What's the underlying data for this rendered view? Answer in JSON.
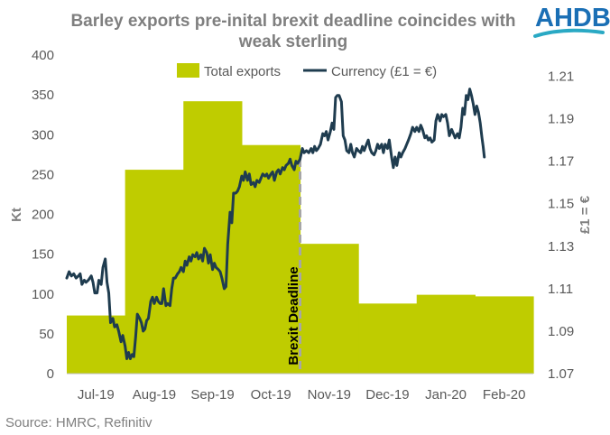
{
  "chart_data": {
    "type": "bar+line",
    "title_lines": [
      "Barley exports pre-inital brexit deadline coincides with",
      "weak sterling"
    ],
    "ylabel_left": "Kt",
    "ylabel_right": "£1 = €",
    "source": "Source: HMRC, Refinitiv",
    "logo": "AHDB",
    "annotation": "Brexit Deadline",
    "ylim_left": [
      0,
      400
    ],
    "yticks_left": [
      0,
      50,
      100,
      150,
      200,
      250,
      300,
      350,
      400
    ],
    "ylim_right": [
      1.07,
      1.22
    ],
    "yticks_right": [
      "1.07",
      "1.09",
      "1.11",
      "1.13",
      "1.15",
      "1.17",
      "1.19",
      "1.21"
    ],
    "month_labels": [
      "Jul-19",
      "Aug-19",
      "Sep-19",
      "Oct-19",
      "Nov-19",
      "Dec-19",
      "Jan-20",
      "Feb-20"
    ],
    "exports": {
      "name": "Total exports",
      "color": "#bfcc00",
      "values": [
        73,
        256,
        342,
        287,
        163,
        88,
        99,
        97
      ]
    },
    "currency": {
      "name": "Currency (£1 = €)",
      "color": "#1f3c4f",
      "points": [
        [
          0.0,
          1.115
        ],
        [
          0.04,
          1.118
        ],
        [
          0.08,
          1.116
        ],
        [
          0.12,
          1.117
        ],
        [
          0.16,
          1.115
        ],
        [
          0.2,
          1.116
        ],
        [
          0.23,
          1.117
        ],
        [
          0.26,
          1.112
        ],
        [
          0.3,
          1.114
        ],
        [
          0.33,
          1.113
        ],
        [
          0.37,
          1.114
        ],
        [
          0.42,
          1.116
        ],
        [
          0.45,
          1.113
        ],
        [
          0.48,
          1.108
        ],
        [
          0.52,
          1.108
        ],
        [
          0.55,
          1.114
        ],
        [
          0.59,
          1.112
        ],
        [
          0.62,
          1.12
        ],
        [
          0.66,
          1.124
        ],
        [
          0.69,
          1.113
        ],
        [
          0.72,
          1.108
        ],
        [
          0.75,
          1.094
        ],
        [
          0.79,
          1.096
        ],
        [
          0.82,
          1.092
        ],
        [
          0.86,
          1.093
        ],
        [
          0.89,
          1.09
        ],
        [
          0.93,
          1.085
        ],
        [
          0.96,
          1.088
        ],
        [
          1.0,
          1.083
        ],
        [
          1.03,
          1.077
        ],
        [
          1.06,
          1.08
        ],
        [
          1.09,
          1.077
        ],
        [
          1.12,
          1.079
        ],
        [
          1.15,
          1.078
        ],
        [
          1.18,
          1.087
        ],
        [
          1.21,
          1.098
        ],
        [
          1.25,
          1.096
        ],
        [
          1.28,
          1.094
        ],
        [
          1.31,
          1.09
        ],
        [
          1.34,
          1.091
        ],
        [
          1.37,
          1.095
        ],
        [
          1.4,
          1.096
        ],
        [
          1.44,
          1.104
        ],
        [
          1.47,
          1.106
        ],
        [
          1.5,
          1.103
        ],
        [
          1.54,
          1.106
        ],
        [
          1.57,
          1.104
        ],
        [
          1.6,
          1.103
        ],
        [
          1.63,
          1.103
        ],
        [
          1.66,
          1.11
        ],
        [
          1.7,
          1.102
        ],
        [
          1.73,
          1.103
        ],
        [
          1.77,
          1.102
        ],
        [
          1.8,
          1.11
        ],
        [
          1.83,
          1.115
        ],
        [
          1.86,
          1.115
        ],
        [
          1.9,
          1.117
        ],
        [
          1.93,
          1.118
        ],
        [
          1.96,
          1.12
        ],
        [
          2.0,
          1.118
        ],
        [
          2.03,
          1.123
        ],
        [
          2.06,
          1.121
        ],
        [
          2.1,
          1.125
        ],
        [
          2.13,
          1.123
        ],
        [
          2.16,
          1.126
        ],
        [
          2.2,
          1.125
        ],
        [
          2.23,
          1.127
        ],
        [
          2.26,
          1.124
        ],
        [
          2.3,
          1.126
        ],
        [
          2.33,
          1.123
        ],
        [
          2.36,
          1.129
        ],
        [
          2.4,
          1.127
        ],
        [
          2.43,
          1.122
        ],
        [
          2.46,
          1.126
        ],
        [
          2.5,
          1.119
        ],
        [
          2.53,
          1.122
        ],
        [
          2.56,
          1.12
        ],
        [
          2.6,
          1.119
        ],
        [
          2.63,
          1.118
        ],
        [
          2.66,
          1.115
        ],
        [
          2.7,
          1.11
        ],
        [
          2.73,
          1.111
        ],
        [
          2.76,
          1.131
        ],
        [
          2.8,
          1.146
        ],
        [
          2.83,
          1.141
        ],
        [
          2.86,
          1.155
        ],
        [
          2.9,
          1.155
        ],
        [
          2.93,
          1.156
        ],
        [
          2.96,
          1.158
        ],
        [
          3.0,
          1.163
        ],
        [
          3.03,
          1.161
        ],
        [
          3.06,
          1.165
        ],
        [
          3.1,
          1.161
        ],
        [
          3.13,
          1.164
        ],
        [
          3.16,
          1.159
        ],
        [
          3.2,
          1.16
        ],
        [
          3.23,
          1.158
        ],
        [
          3.26,
          1.161
        ],
        [
          3.3,
          1.16
        ],
        [
          3.33,
          1.162
        ],
        [
          3.36,
          1.164
        ],
        [
          3.4,
          1.163
        ],
        [
          3.43,
          1.164
        ],
        [
          3.46,
          1.162
        ],
        [
          3.5,
          1.164
        ],
        [
          3.53,
          1.165
        ],
        [
          3.56,
          1.161
        ],
        [
          3.6,
          1.165
        ],
        [
          3.63,
          1.166
        ],
        [
          3.66,
          1.164
        ],
        [
          3.7,
          1.167
        ],
        [
          3.73,
          1.166
        ],
        [
          3.76,
          1.168
        ],
        [
          3.8,
          1.169
        ],
        [
          3.83,
          1.171
        ],
        [
          3.86,
          1.168
        ],
        [
          3.9,
          1.166
        ],
        [
          3.93,
          1.17
        ],
        [
          3.96,
          1.169
        ],
        [
          4.0,
          1.171
        ],
        [
          4.04,
          1.176
        ],
        [
          4.07,
          1.174
        ],
        [
          4.11,
          1.175
        ],
        [
          4.15,
          1.174
        ],
        [
          4.19,
          1.176
        ],
        [
          4.22,
          1.174
        ],
        [
          4.25,
          1.177
        ],
        [
          4.28,
          1.175
        ],
        [
          4.31,
          1.176
        ],
        [
          4.35,
          1.178
        ],
        [
          4.39,
          1.183
        ],
        [
          4.42,
          1.182
        ],
        [
          4.45,
          1.184
        ],
        [
          4.48,
          1.18
        ],
        [
          4.52,
          1.184
        ],
        [
          4.55,
          1.188
        ],
        [
          4.58,
          1.185
        ],
        [
          4.61,
          1.2
        ],
        [
          4.64,
          1.201
        ],
        [
          4.67,
          1.201
        ],
        [
          4.71,
          1.198
        ],
        [
          4.74,
          1.182
        ],
        [
          4.77,
          1.18
        ],
        [
          4.8,
          1.175
        ],
        [
          4.84,
          1.174
        ],
        [
          4.87,
          1.178
        ],
        [
          4.9,
          1.174
        ],
        [
          4.93,
          1.172
        ],
        [
          4.97,
          1.176
        ],
        [
          5.0,
          1.175
        ],
        [
          5.04,
          1.174
        ],
        [
          5.07,
          1.177
        ],
        [
          5.1,
          1.175
        ],
        [
          5.14,
          1.178
        ],
        [
          5.17,
          1.18
        ],
        [
          5.2,
          1.176
        ],
        [
          5.23,
          1.174
        ],
        [
          5.27,
          1.173
        ],
        [
          5.3,
          1.175
        ],
        [
          5.33,
          1.178
        ],
        [
          5.36,
          1.176
        ],
        [
          5.4,
          1.178
        ],
        [
          5.43,
          1.174
        ],
        [
          5.46,
          1.178
        ],
        [
          5.5,
          1.176
        ],
        [
          5.53,
          1.18
        ],
        [
          5.57,
          1.172
        ],
        [
          5.6,
          1.167
        ],
        [
          5.63,
          1.172
        ],
        [
          5.66,
          1.168
        ],
        [
          5.7,
          1.174
        ],
        [
          5.73,
          1.172
        ],
        [
          5.76,
          1.174
        ],
        [
          5.8,
          1.176
        ],
        [
          5.83,
          1.178
        ],
        [
          5.86,
          1.18
        ],
        [
          5.9,
          1.183
        ],
        [
          5.93,
          1.186
        ],
        [
          5.97,
          1.184
        ],
        [
          6.0,
          1.186
        ],
        [
          6.04,
          1.184
        ],
        [
          6.07,
          1.187
        ],
        [
          6.1,
          1.185
        ],
        [
          6.14,
          1.181
        ],
        [
          6.17,
          1.182
        ],
        [
          6.2,
          1.18
        ],
        [
          6.23,
          1.181
        ],
        [
          6.26,
          1.179
        ],
        [
          6.3,
          1.18
        ],
        [
          6.33,
          1.189
        ],
        [
          6.36,
          1.192
        ],
        [
          6.4,
          1.189
        ],
        [
          6.43,
          1.192
        ],
        [
          6.46,
          1.191
        ],
        [
          6.5,
          1.192
        ],
        [
          6.53,
          1.188
        ],
        [
          6.56,
          1.182
        ],
        [
          6.6,
          1.185
        ],
        [
          6.63,
          1.183
        ],
        [
          6.66,
          1.181
        ],
        [
          6.7,
          1.183
        ],
        [
          6.73,
          1.181
        ],
        [
          6.76,
          1.186
        ],
        [
          6.79,
          1.195
        ],
        [
          6.82,
          1.192
        ],
        [
          6.85,
          1.201
        ],
        [
          6.88,
          1.199
        ],
        [
          6.91,
          1.204
        ],
        [
          6.94,
          1.201
        ],
        [
          6.97,
          1.197
        ],
        [
          7.0,
          1.192
        ],
        [
          7.03,
          1.196
        ],
        [
          7.06,
          1.193
        ],
        [
          7.09,
          1.188
        ],
        [
          7.12,
          1.181
        ],
        [
          7.14,
          1.177
        ],
        [
          7.16,
          1.172
        ]
      ]
    }
  }
}
